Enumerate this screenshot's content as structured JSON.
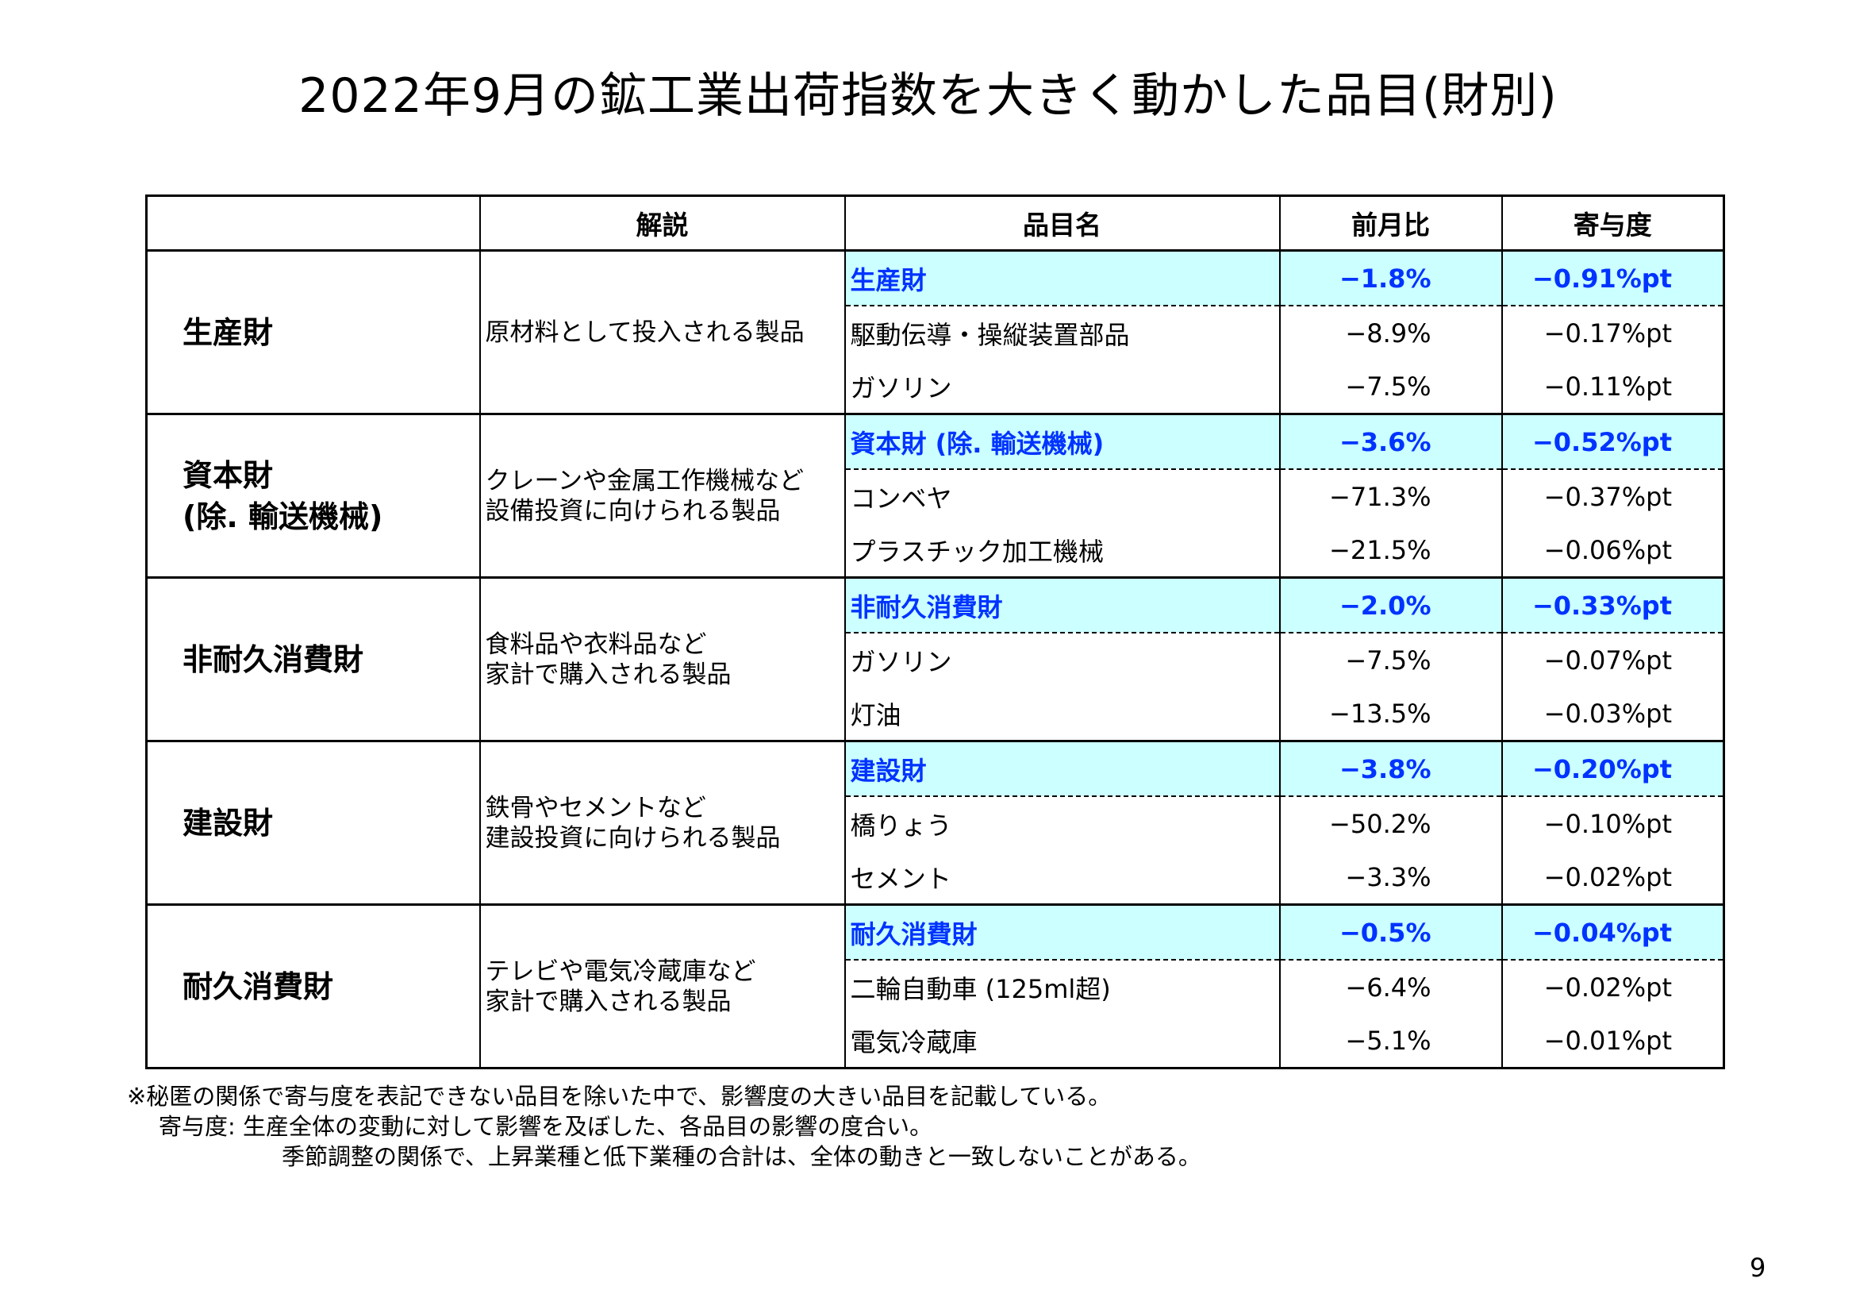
{
  "title": "2022年9月の鉱工業出荷指数を大きく動かした品目(財別)",
  "headers": {
    "blank": "",
    "desc": "解説",
    "item": "品目名",
    "mom": "前月比",
    "contrib": "寄与度"
  },
  "groups": [
    {
      "label": "生産財",
      "label2": "",
      "desc": "原材料として投入される製品",
      "desc2": "",
      "summary": {
        "name": "生産財",
        "mom": "−1.8%",
        "contrib": "−0.91%pt"
      },
      "items": [
        {
          "name": "駆動伝導・操縦装置部品",
          "mom": "−8.9%",
          "contrib": "−0.17%pt"
        },
        {
          "name": "ガソリン",
          "mom": "−7.5%",
          "contrib": "−0.11%pt"
        }
      ]
    },
    {
      "label": "資本財",
      "label2": "(除. 輸送機械)",
      "desc": "クレーンや金属工作機械など",
      "desc2": "設備投資に向けられる製品",
      "summary": {
        "name": "資本財 (除. 輸送機械)",
        "mom": "−3.6%",
        "contrib": "−0.52%pt"
      },
      "items": [
        {
          "name": "コンベヤ",
          "mom": "−71.3%",
          "contrib": "−0.37%pt"
        },
        {
          "name": "プラスチック加工機械",
          "mom": "−21.5%",
          "contrib": "−0.06%pt"
        }
      ]
    },
    {
      "label": "非耐久消費財",
      "label2": "",
      "desc": "食料品や衣料品など",
      "desc2": "家計で購入される製品",
      "summary": {
        "name": "非耐久消費財",
        "mom": "−2.0%",
        "contrib": "−0.33%pt"
      },
      "items": [
        {
          "name": "ガソリン",
          "mom": "−7.5%",
          "contrib": "−0.07%pt"
        },
        {
          "name": "灯油",
          "mom": "−13.5%",
          "contrib": "−0.03%pt"
        }
      ]
    },
    {
      "label": "建設財",
      "label2": "",
      "desc": "鉄骨やセメントなど",
      "desc2": "建設投資に向けられる製品",
      "summary": {
        "name": "建設財",
        "mom": "−3.8%",
        "contrib": "−0.20%pt"
      },
      "items": [
        {
          "name": "橋りょう",
          "mom": "−50.2%",
          "contrib": "−0.10%pt"
        },
        {
          "name": "セメント",
          "mom": "−3.3%",
          "contrib": "−0.02%pt"
        }
      ]
    },
    {
      "label": "耐久消費財",
      "label2": "",
      "desc": "テレビや電気冷蔵庫など",
      "desc2": "家計で購入される製品",
      "summary": {
        "name": "耐久消費財",
        "mom": "−0.5%",
        "contrib": "−0.04%pt"
      },
      "items": [
        {
          "name": "二輪自動車 (125ml超)",
          "mom": "−6.4%",
          "contrib": "−0.02%pt"
        },
        {
          "name": "電気冷蔵庫",
          "mom": "−5.1%",
          "contrib": "−0.01%pt"
        }
      ]
    }
  ],
  "notes": {
    "line1": "※秘匿の関係で寄与度を表記できない品目を除いた中で、影響度の大きい品目を記載している。",
    "line2": "寄与度: 生産全体の変動に対して影響を及ぼした、各品目の影響の度合い。",
    "line3": "季節調整の関係で、上昇業種と低下業種の合計は、全体の動きと一致しないことがある。"
  },
  "page_number": "9",
  "colors": {
    "summary_bg": "#ccffff",
    "summary_text": "#0033ff"
  }
}
